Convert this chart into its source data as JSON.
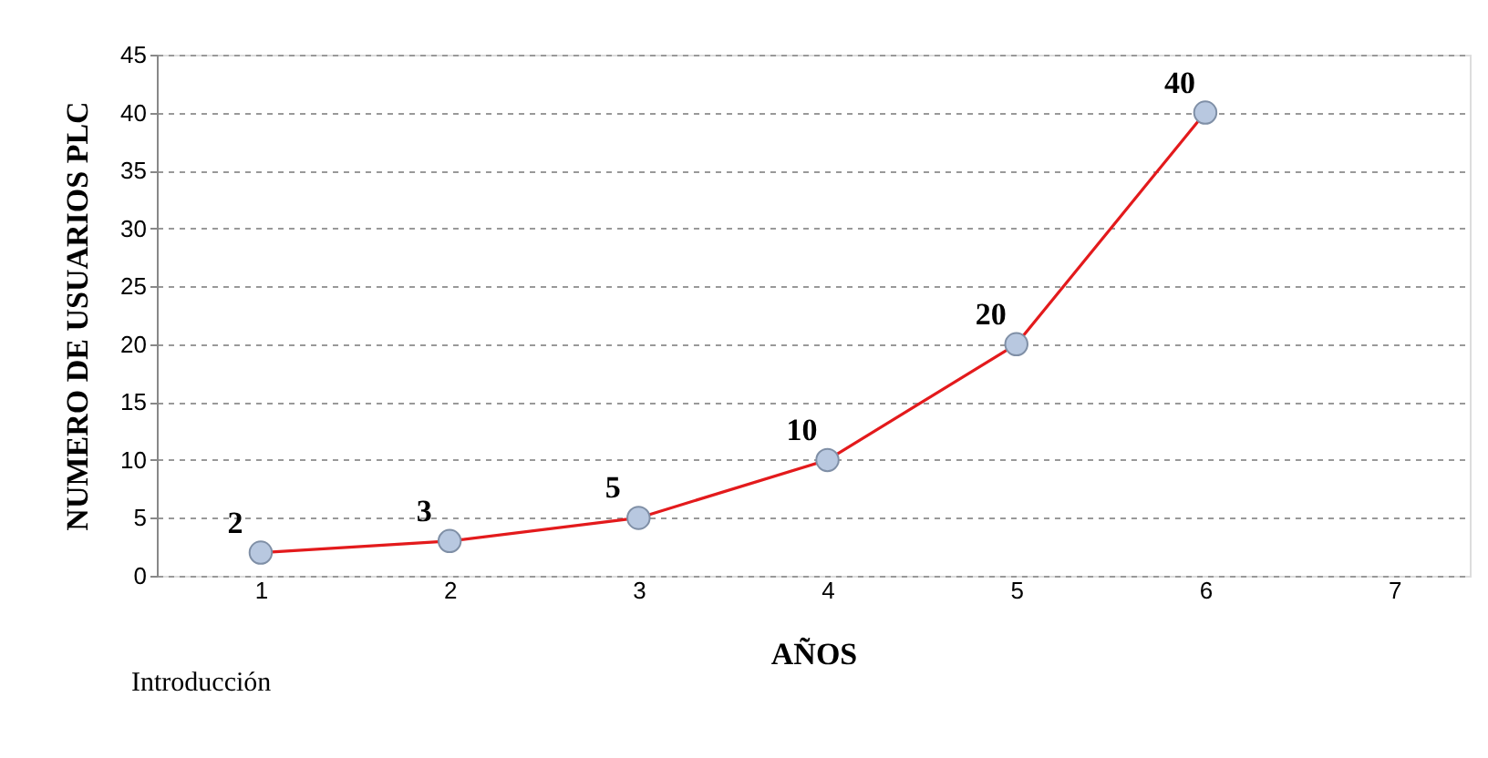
{
  "chart_data": {
    "type": "line",
    "xlabel": "AÑOS",
    "ylabel": "NUMERO  DE  USUARIOS  PLC",
    "x": [
      1,
      2,
      3,
      4,
      5,
      6
    ],
    "series": [
      {
        "color": "#e31a1c",
        "values": [
          2,
          3,
          5,
          10,
          20,
          40
        ]
      }
    ],
    "xlim": [
      0.45,
      7.4
    ],
    "xticks": [
      1,
      2,
      3,
      4,
      5,
      6,
      7
    ],
    "ylim": [
      0,
      45
    ],
    "yticks": [
      0,
      5,
      10,
      15,
      20,
      25,
      30,
      35,
      40,
      45
    ],
    "grid": "y",
    "legend": false,
    "marker": "circle",
    "line_style": "solid",
    "data_labels": true,
    "annotations": [
      "Introducción"
    ]
  }
}
